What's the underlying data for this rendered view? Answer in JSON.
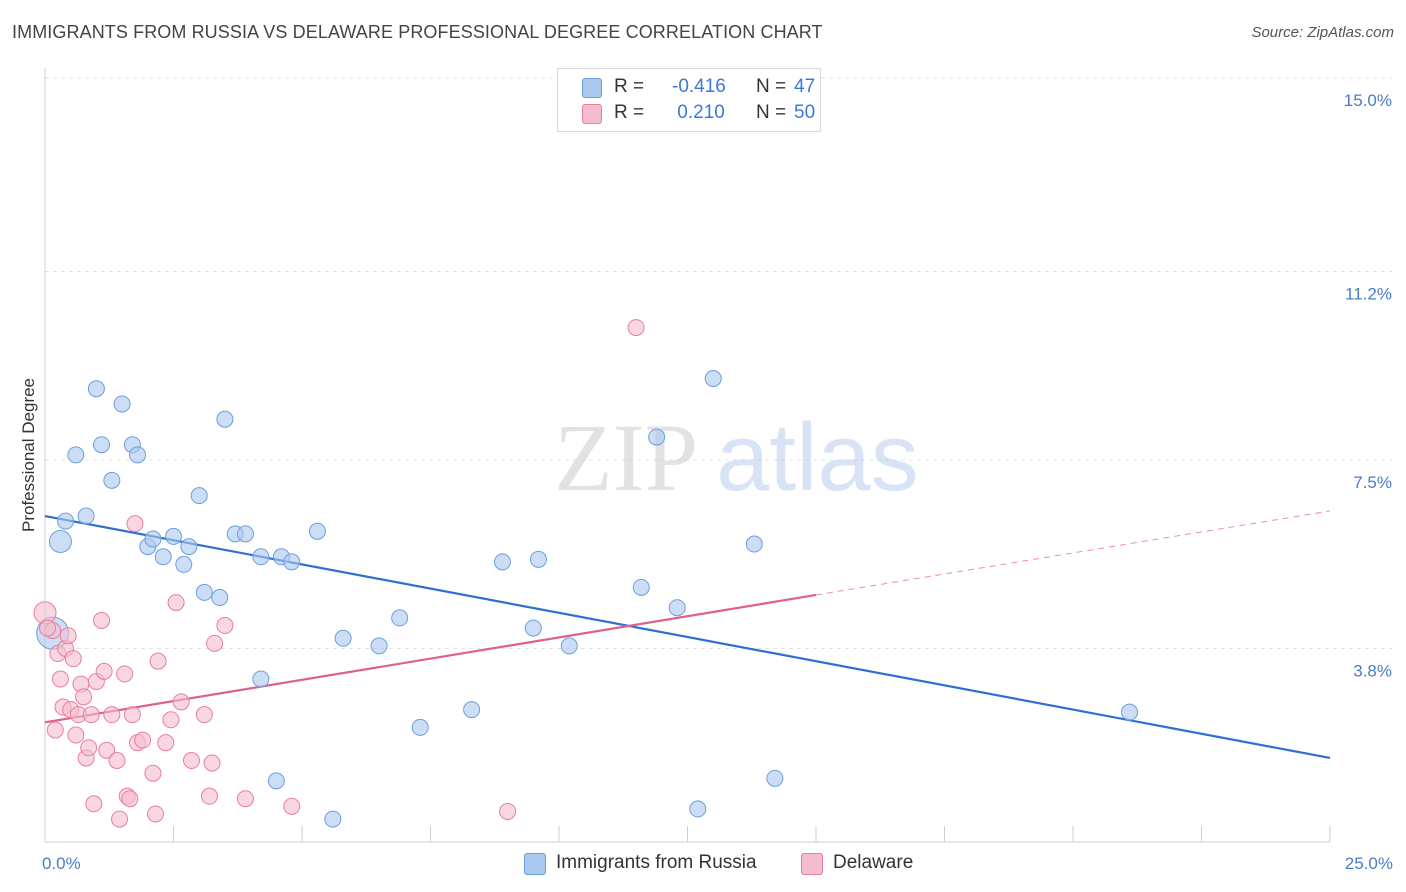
{
  "title": "IMMIGRANTS FROM RUSSIA VS DELAWARE PROFESSIONAL DEGREE CORRELATION CHART",
  "source": "Source: ZipAtlas.com",
  "watermark": {
    "zip": "ZIP",
    "atlas": "atlas"
  },
  "colors": {
    "blue_fill": "#aac8ee",
    "blue_stroke": "#6b9fdc",
    "blue_line": "#2f6fd0",
    "pink_fill": "#f5bccd",
    "pink_stroke": "#e87fa0",
    "pink_line": "#e0608a",
    "tick_text": "#4a7cc9",
    "grid": "#e3e3e3"
  },
  "legend": {
    "series1": {
      "r_label": "R =",
      "r_value": "-0.416",
      "n_label": "N =",
      "n_value": "47"
    },
    "series2": {
      "r_label": "R =",
      "r_value": " 0.210",
      "n_label": "N =",
      "n_value": "50"
    }
  },
  "bottom_legend": {
    "series1": "Immigrants from Russia",
    "series2": "Delaware"
  },
  "chart_data": {
    "type": "scatter",
    "xlabel": "",
    "ylabel": "Professional Degree",
    "xlim": [
      0,
      25
    ],
    "ylim": [
      0,
      15
    ],
    "x_tick_labels": [
      "0.0%",
      "25.0%"
    ],
    "y_ticks": [
      3.8,
      7.5,
      11.2,
      15.0
    ],
    "y_tick_labels": [
      "3.8%",
      "7.5%",
      "11.2%",
      "15.0%"
    ],
    "grid": true,
    "series": [
      {
        "name": "Immigrants from Russia",
        "color": "#6b9fdc",
        "points": [
          [
            0.3,
            5.9
          ],
          [
            0.4,
            6.3
          ],
          [
            0.8,
            6.4
          ],
          [
            0.6,
            7.6
          ],
          [
            1.0,
            8.9
          ],
          [
            1.3,
            7.1
          ],
          [
            1.1,
            7.8
          ],
          [
            1.5,
            8.6
          ],
          [
            1.7,
            7.8
          ],
          [
            1.8,
            7.6
          ],
          [
            2.0,
            5.8
          ],
          [
            2.1,
            5.95
          ],
          [
            2.3,
            5.6
          ],
          [
            2.5,
            6.0
          ],
          [
            2.7,
            5.45
          ],
          [
            2.8,
            5.8
          ],
          [
            3.0,
            6.8
          ],
          [
            3.5,
            8.3
          ],
          [
            3.1,
            4.9
          ],
          [
            3.4,
            4.8
          ],
          [
            3.7,
            6.05
          ],
          [
            3.9,
            6.05
          ],
          [
            4.2,
            5.6
          ],
          [
            4.6,
            5.6
          ],
          [
            4.8,
            5.5
          ],
          [
            5.3,
            6.1
          ],
          [
            4.2,
            3.2
          ],
          [
            5.8,
            4.0
          ],
          [
            6.5,
            3.85
          ],
          [
            6.9,
            4.4
          ],
          [
            7.3,
            2.25
          ],
          [
            8.3,
            2.6
          ],
          [
            8.9,
            5.5
          ],
          [
            9.5,
            4.2
          ],
          [
            9.6,
            5.55
          ],
          [
            10.2,
            3.85
          ],
          [
            11.6,
            5.0
          ],
          [
            11.9,
            7.95
          ],
          [
            12.3,
            4.6
          ],
          [
            12.7,
            0.65
          ],
          [
            13.0,
            9.1
          ],
          [
            13.8,
            5.85
          ],
          [
            14.2,
            1.25
          ],
          [
            21.1,
            2.55
          ],
          [
            5.6,
            0.45
          ],
          [
            4.5,
            1.2
          ],
          [
            0.15,
            4.1
          ]
        ],
        "r": -0.416,
        "n": 47,
        "trend": {
          "x": [
            0,
            25
          ],
          "y": [
            6.4,
            1.65
          ]
        }
      },
      {
        "name": "Delaware",
        "color": "#e87fa0",
        "points": [
          [
            0.0,
            4.5
          ],
          [
            0.15,
            4.15
          ],
          [
            0.25,
            3.7
          ],
          [
            0.3,
            3.2
          ],
          [
            0.35,
            2.65
          ],
          [
            0.4,
            3.8
          ],
          [
            0.45,
            4.05
          ],
          [
            0.5,
            2.6
          ],
          [
            0.55,
            3.6
          ],
          [
            0.6,
            2.1
          ],
          [
            0.65,
            2.5
          ],
          [
            0.7,
            3.1
          ],
          [
            0.75,
            2.85
          ],
          [
            0.8,
            1.65
          ],
          [
            0.85,
            1.85
          ],
          [
            0.9,
            2.5
          ],
          [
            0.95,
            0.75
          ],
          [
            1.0,
            3.15
          ],
          [
            1.1,
            4.35
          ],
          [
            1.15,
            3.35
          ],
          [
            1.2,
            1.8
          ],
          [
            1.3,
            2.5
          ],
          [
            1.4,
            1.6
          ],
          [
            1.45,
            0.45
          ],
          [
            1.55,
            3.3
          ],
          [
            1.6,
            0.9
          ],
          [
            1.65,
            0.85
          ],
          [
            1.7,
            2.5
          ],
          [
            1.75,
            6.25
          ],
          [
            1.8,
            1.95
          ],
          [
            1.9,
            2.0
          ],
          [
            2.1,
            1.35
          ],
          [
            2.15,
            0.55
          ],
          [
            2.2,
            3.55
          ],
          [
            2.35,
            1.95
          ],
          [
            2.45,
            2.4
          ],
          [
            2.55,
            4.7
          ],
          [
            2.65,
            2.75
          ],
          [
            2.85,
            1.6
          ],
          [
            3.1,
            2.5
          ],
          [
            3.2,
            0.9
          ],
          [
            3.25,
            1.55
          ],
          [
            3.3,
            3.9
          ],
          [
            3.5,
            4.25
          ],
          [
            3.9,
            0.85
          ],
          [
            4.8,
            0.7
          ],
          [
            9.0,
            0.6
          ],
          [
            11.5,
            10.1
          ],
          [
            0.05,
            4.2
          ],
          [
            0.2,
            2.2
          ]
        ],
        "r": 0.21,
        "n": 50,
        "trend": {
          "x": [
            0,
            15
          ],
          "y": [
            2.35,
            4.85
          ]
        },
        "trend_dashed": {
          "x": [
            15,
            25
          ],
          "y": [
            4.85,
            6.5
          ]
        }
      }
    ]
  }
}
